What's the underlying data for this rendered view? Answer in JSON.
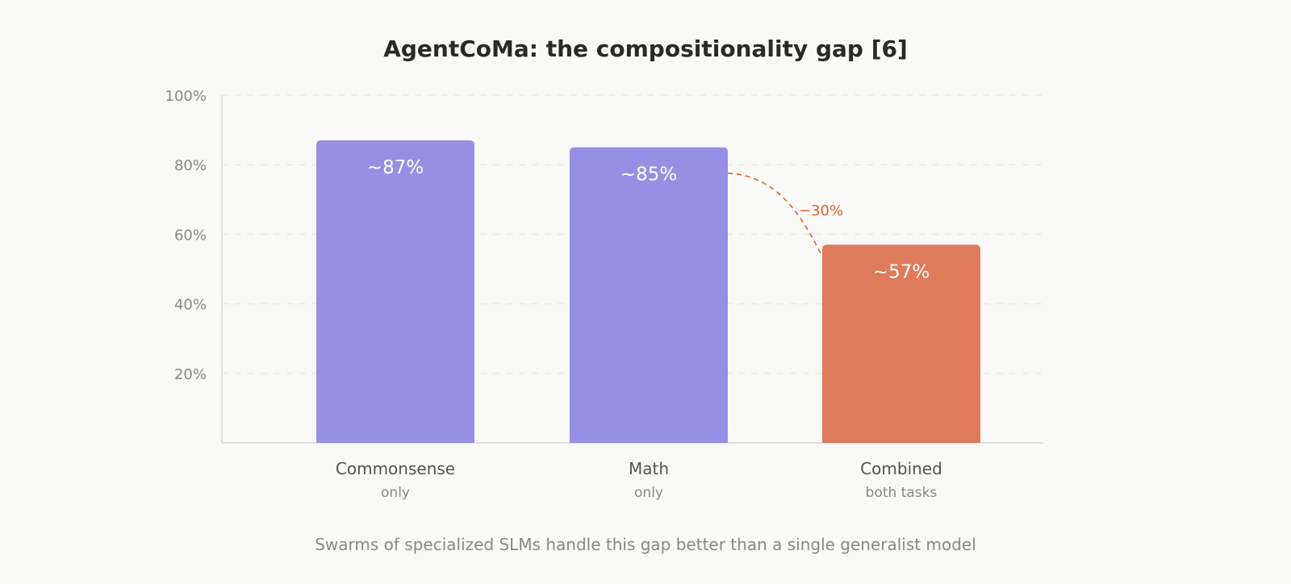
{
  "chart_data": {
    "type": "bar",
    "title": "AgentCoMa: the compositionality gap [6]",
    "categories": [
      "Commonsense",
      "Math",
      "Combined"
    ],
    "category_sublabels": [
      "only",
      "only",
      "both tasks"
    ],
    "values": [
      87,
      85,
      57
    ],
    "data_labels": [
      "~87%",
      "~85%",
      "~57%"
    ],
    "bar_colors": [
      "#9590e3",
      "#9590e3",
      "#df7a5a"
    ],
    "ylim": [
      0,
      100
    ],
    "yticks": [
      20,
      40,
      60,
      80,
      100
    ],
    "ytick_labels": [
      "20%",
      "40%",
      "60%",
      "80%",
      "100%"
    ],
    "grid": true,
    "annotation": {
      "text": "−30%",
      "from": "Math",
      "to": "Combined",
      "color": "#e0622f"
    },
    "footnote": "Swarms of specialized SLMs handle this gap better than a single generalist model"
  }
}
